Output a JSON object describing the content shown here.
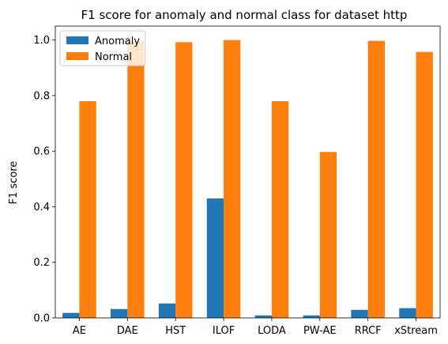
{
  "chart_data": {
    "type": "bar",
    "title": "F1 score for anomaly and normal class for dataset http",
    "xlabel": "",
    "ylabel": "F1 score",
    "ylim": [
      0,
      1.05
    ],
    "yticks": [
      "0.0",
      "0.2",
      "0.4",
      "0.6",
      "0.8",
      "1.0"
    ],
    "categories": [
      "AE",
      "DAE",
      "HST",
      "ILOF",
      "LODA",
      "PW-AE",
      "RRCF",
      "xStream"
    ],
    "series": [
      {
        "name": "Anomaly",
        "color": "#1f77b4",
        "values": [
          0.018,
          0.032,
          0.052,
          0.43,
          0.009,
          0.009,
          0.029,
          0.035
        ]
      },
      {
        "name": "Normal",
        "color": "#ff7f0e",
        "values": [
          0.78,
          0.995,
          0.992,
          1.0,
          0.78,
          0.597,
          0.997,
          0.957
        ]
      }
    ],
    "grid": false,
    "legend_position": "top-left"
  }
}
